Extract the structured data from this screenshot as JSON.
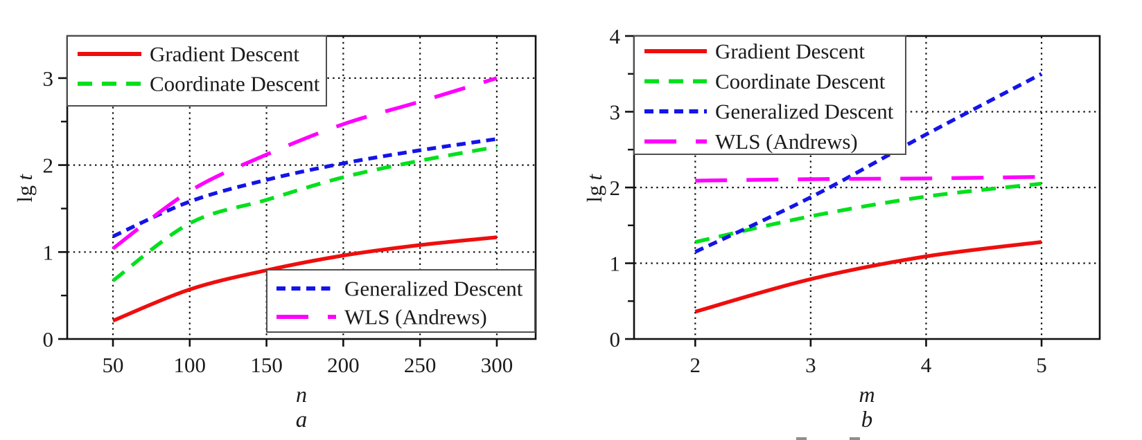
{
  "figure": {
    "ylabel": "lg t",
    "ylabel_roman": "lg",
    "ylabel_italic": "t"
  },
  "chart_data": [
    {
      "type": "line",
      "panel_label": "a",
      "xlabel": "n",
      "ylabel": "lg t",
      "ylabel_roman": "lg",
      "ylabel_italic": "t",
      "xlim": [
        20.2,
        325.3
      ],
      "ylim": [
        0,
        3.4845
      ],
      "x_ticks": [
        50,
        100,
        150,
        200,
        250,
        300
      ],
      "y_ticks": [
        0,
        1,
        2,
        3
      ],
      "y_minor_step": 0.5,
      "grid": "dotted",
      "series": [
        {
          "name": "Gradient Descent",
          "color": "#ee0e0e",
          "style": "solid",
          "x": [
            50,
            100,
            150,
            200,
            250,
            300
          ],
          "y": [
            0.21,
            0.57,
            0.79,
            0.96,
            1.08,
            1.17
          ]
        },
        {
          "name": "Coordinate Descent",
          "color": "#00e01c",
          "style": "dashed",
          "x": [
            50,
            100,
            150,
            200,
            250,
            300
          ],
          "y": [
            0.67,
            1.33,
            1.6,
            1.86,
            2.05,
            2.21
          ]
        },
        {
          "name": "Generalized Descent",
          "color": "#1414e8",
          "style": "dense-dashed",
          "x": [
            50,
            100,
            150,
            200,
            250,
            300
          ],
          "y": [
            1.18,
            1.58,
            1.83,
            2.02,
            2.17,
            2.3
          ]
        },
        {
          "name": "WLS (Andrews)",
          "color": "#ff00ff",
          "style": "long-dashed",
          "x": [
            50,
            100,
            150,
            200,
            250,
            300
          ],
          "y": [
            1.04,
            1.7,
            2.12,
            2.47,
            2.73,
            3.0
          ]
        }
      ],
      "legends": [
        {
          "position": "top-left",
          "entries": [
            "Gradient Descent",
            "Coordinate Descent"
          ]
        },
        {
          "position": "bottom-right",
          "entries": [
            "Generalized Descent",
            "WLS (Andrews)"
          ]
        }
      ]
    },
    {
      "type": "line",
      "panel_label": "b",
      "xlabel": "m",
      "ylabel": "lg t",
      "ylabel_roman": "lg",
      "ylabel_italic": "t",
      "xlim": [
        1.47,
        5.504
      ],
      "ylim": [
        0,
        4
      ],
      "x_ticks": [
        2,
        3,
        4,
        5
      ],
      "y_ticks": [
        0,
        1,
        2,
        3,
        4
      ],
      "y_minor_step": 0.5,
      "grid": "dotted",
      "series": [
        {
          "name": "Gradient Descent",
          "color": "#ee0e0e",
          "style": "solid",
          "x": [
            2,
            3,
            4,
            5
          ],
          "y": [
            0.36,
            0.79,
            1.09,
            1.28
          ]
        },
        {
          "name": "Coordinate Descent",
          "color": "#00e01c",
          "style": "dashed",
          "x": [
            2,
            3,
            4,
            5
          ],
          "y": [
            1.28,
            1.62,
            1.88,
            2.05
          ]
        },
        {
          "name": "Generalized Descent",
          "color": "#1414e8",
          "style": "dense-dashed",
          "x": [
            2,
            3,
            4,
            5
          ],
          "y": [
            1.15,
            1.87,
            2.7,
            3.5
          ]
        },
        {
          "name": "WLS (Andrews)",
          "color": "#ff00ff",
          "style": "long-dashed",
          "x": [
            2,
            3,
            4,
            5
          ],
          "y": [
            2.09,
            2.11,
            2.12,
            2.14
          ]
        }
      ],
      "legends": [
        {
          "position": "top-left",
          "entries": [
            "Gradient Descent",
            "Coordinate Descent",
            "Generalized Descent",
            "WLS (Andrews)"
          ]
        }
      ]
    }
  ]
}
